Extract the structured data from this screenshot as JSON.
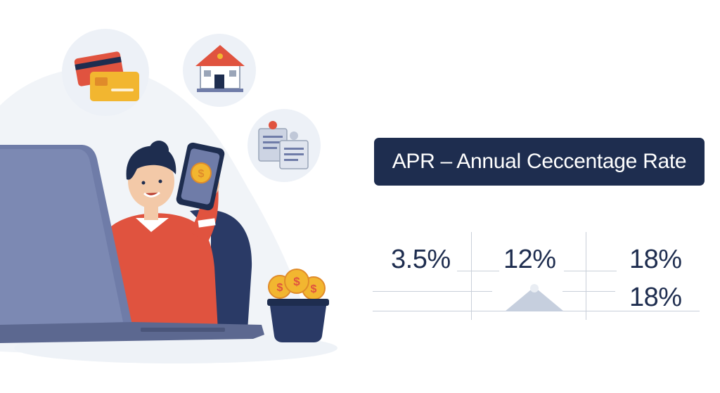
{
  "title": "APR – Annual Ceccentage Rate",
  "rates": {
    "first": "3.5%",
    "second": "12%",
    "third_top": "18%",
    "third_bottom": "18%"
  },
  "icons": {
    "cards": "credit-cards-icon",
    "house": "house-icon",
    "documents": "documents-icon",
    "phone_coin": "dollar-coin-icon",
    "coins": "coin-stack-icon"
  },
  "colors": {
    "navy": "#1e2d4f",
    "sweater": "#e0533f",
    "laptop": "#6f7ca8",
    "coin": "#f2b630",
    "bubble": "#edf1f7"
  }
}
